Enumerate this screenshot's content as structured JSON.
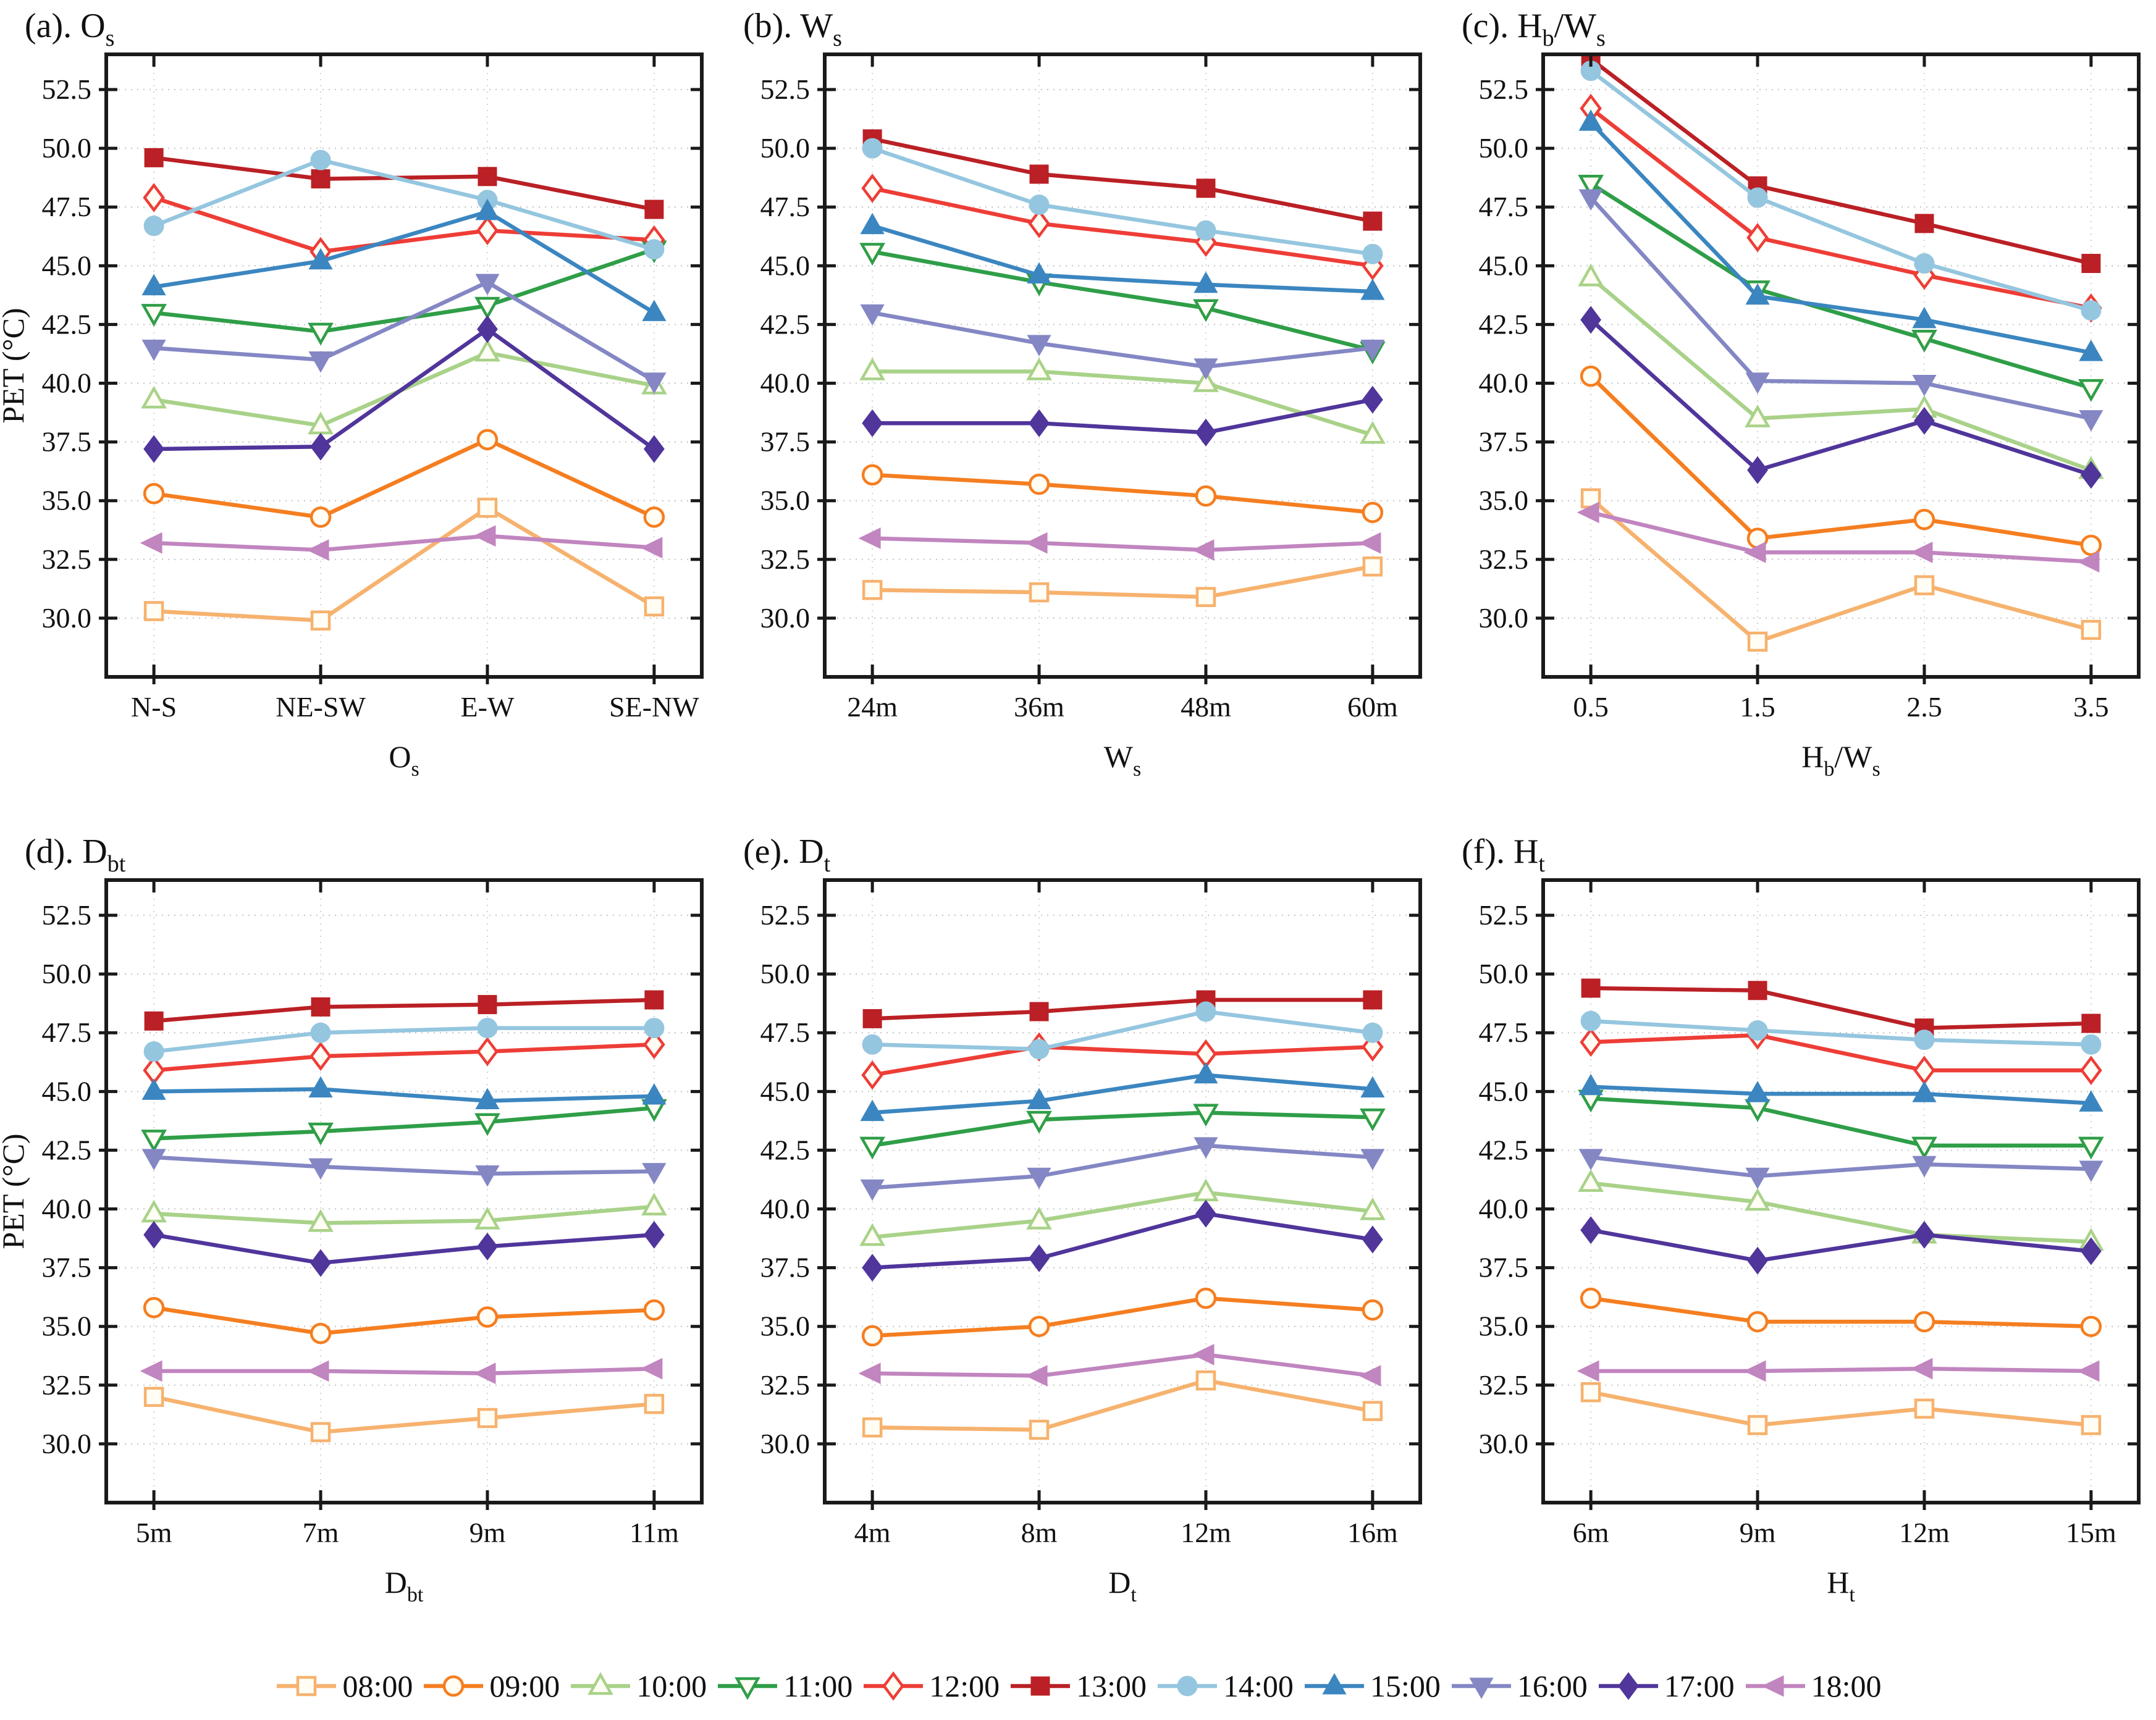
{
  "figure": {
    "ylabel": "PET (°C)",
    "ymin": 27.5,
    "ymax": 54.0,
    "yticks": [
      30.0,
      32.5,
      35.0,
      37.5,
      40.0,
      42.5,
      45.0,
      47.5,
      50.0,
      52.5
    ],
    "grid": "dotted",
    "legend_position": "bottom"
  },
  "legend": {
    "items": [
      {
        "label": "08:00",
        "color": "#F6B26E",
        "marker": "square",
        "filled": false
      },
      {
        "label": "09:00",
        "color": "#F57E20",
        "marker": "circle",
        "filled": false
      },
      {
        "label": "10:00",
        "color": "#A9D289",
        "marker": "triangle-up",
        "filled": false
      },
      {
        "label": "11:00",
        "color": "#2F9E48",
        "marker": "triangle-down",
        "filled": false
      },
      {
        "label": "12:00",
        "color": "#EE3D37",
        "marker": "diamond",
        "filled": false
      },
      {
        "label": "13:00",
        "color": "#BA2025",
        "marker": "square",
        "filled": true
      },
      {
        "label": "14:00",
        "color": "#95C6DF",
        "marker": "circle",
        "filled": true
      },
      {
        "label": "15:00",
        "color": "#3B86C0",
        "marker": "triangle-up",
        "filled": true
      },
      {
        "label": "16:00",
        "color": "#8487C4",
        "marker": "triangle-down",
        "filled": true
      },
      {
        "label": "17:00",
        "color": "#50359B",
        "marker": "diamond",
        "filled": true
      },
      {
        "label": "18:00",
        "color": "#C185BF",
        "marker": "triangle-left",
        "filled": true
      }
    ]
  },
  "chart_data": [
    {
      "type": "line",
      "panel": "a",
      "title_parts": [
        {
          "t": "(a). O"
        },
        {
          "sub": "s"
        }
      ],
      "xlabel_parts": [
        {
          "t": "O"
        },
        {
          "sub": "s"
        }
      ],
      "categories": [
        "N-S",
        "NE-SW",
        "E-W",
        "SE-NW"
      ],
      "show_ylabel": true,
      "series": [
        {
          "name": "08:00",
          "values": [
            30.3,
            29.9,
            34.7,
            30.5
          ]
        },
        {
          "name": "09:00",
          "values": [
            35.3,
            34.3,
            37.6,
            34.3
          ]
        },
        {
          "name": "10:00",
          "values": [
            39.3,
            38.2,
            41.3,
            39.9
          ]
        },
        {
          "name": "11:00",
          "values": [
            43.0,
            42.2,
            43.3,
            45.7
          ]
        },
        {
          "name": "12:00",
          "values": [
            47.9,
            45.6,
            46.5,
            46.1
          ]
        },
        {
          "name": "13:00",
          "values": [
            49.6,
            48.7,
            48.8,
            47.4
          ]
        },
        {
          "name": "14:00",
          "values": [
            46.7,
            49.5,
            47.8,
            45.7
          ]
        },
        {
          "name": "15:00",
          "values": [
            44.1,
            45.2,
            47.3,
            43.0
          ]
        },
        {
          "name": "16:00",
          "values": [
            41.5,
            41.0,
            44.3,
            40.1
          ]
        },
        {
          "name": "17:00",
          "values": [
            37.2,
            37.3,
            42.3,
            37.2
          ]
        },
        {
          "name": "18:00",
          "values": [
            33.2,
            32.9,
            33.5,
            33.0
          ]
        }
      ]
    },
    {
      "type": "line",
      "panel": "b",
      "title_parts": [
        {
          "t": "(b). W"
        },
        {
          "sub": "s"
        }
      ],
      "xlabel_parts": [
        {
          "t": "W"
        },
        {
          "sub": "s"
        }
      ],
      "categories": [
        "24m",
        "36m",
        "48m",
        "60m"
      ],
      "show_ylabel": false,
      "series": [
        {
          "name": "08:00",
          "values": [
            31.2,
            31.1,
            30.9,
            32.2
          ]
        },
        {
          "name": "09:00",
          "values": [
            36.1,
            35.7,
            35.2,
            34.5
          ]
        },
        {
          "name": "10:00",
          "values": [
            40.5,
            40.5,
            40.0,
            37.8
          ]
        },
        {
          "name": "11:00",
          "values": [
            45.6,
            44.3,
            43.2,
            41.4
          ]
        },
        {
          "name": "12:00",
          "values": [
            48.3,
            46.8,
            46.0,
            45.0
          ]
        },
        {
          "name": "13:00",
          "values": [
            50.4,
            48.9,
            48.3,
            46.9
          ]
        },
        {
          "name": "14:00",
          "values": [
            50.0,
            47.6,
            46.5,
            45.5
          ]
        },
        {
          "name": "15:00",
          "values": [
            46.7,
            44.6,
            44.2,
            43.9
          ]
        },
        {
          "name": "16:00",
          "values": [
            43.0,
            41.7,
            40.7,
            41.5
          ]
        },
        {
          "name": "17:00",
          "values": [
            38.3,
            38.3,
            37.9,
            39.3
          ]
        },
        {
          "name": "18:00",
          "values": [
            33.4,
            33.2,
            32.9,
            33.2
          ]
        }
      ]
    },
    {
      "type": "line",
      "panel": "c",
      "title_parts": [
        {
          "t": "(c). H"
        },
        {
          "sub": "b"
        },
        {
          "t": "/W"
        },
        {
          "sub": "s"
        }
      ],
      "xlabel_parts": [
        {
          "t": "H"
        },
        {
          "sub": "b"
        },
        {
          "t": "/W"
        },
        {
          "sub": "s"
        }
      ],
      "categories": [
        "0.5",
        "1.5",
        "2.5",
        "3.5"
      ],
      "show_ylabel": false,
      "series": [
        {
          "name": "08:00",
          "values": [
            35.1,
            29.0,
            31.4,
            29.5
          ]
        },
        {
          "name": "09:00",
          "values": [
            40.3,
            33.4,
            34.2,
            33.1
          ]
        },
        {
          "name": "10:00",
          "values": [
            44.5,
            38.5,
            38.9,
            36.3
          ]
        },
        {
          "name": "11:00",
          "values": [
            48.5,
            44.0,
            41.9,
            39.8
          ]
        },
        {
          "name": "12:00",
          "values": [
            51.7,
            46.2,
            44.6,
            43.2
          ]
        },
        {
          "name": "13:00",
          "values": [
            53.8,
            48.4,
            46.8,
            45.1
          ]
        },
        {
          "name": "14:00",
          "values": [
            53.3,
            47.9,
            45.1,
            43.1
          ]
        },
        {
          "name": "15:00",
          "values": [
            51.1,
            43.7,
            42.7,
            41.3
          ]
        },
        {
          "name": "16:00",
          "values": [
            47.9,
            40.1,
            40.0,
            38.5
          ]
        },
        {
          "name": "17:00",
          "values": [
            42.7,
            36.3,
            38.4,
            36.1
          ]
        },
        {
          "name": "18:00",
          "values": [
            34.5,
            32.8,
            32.8,
            32.4
          ]
        }
      ]
    },
    {
      "type": "line",
      "panel": "d",
      "title_parts": [
        {
          "t": "(d). D"
        },
        {
          "sub": "bt"
        }
      ],
      "xlabel_parts": [
        {
          "t": "D"
        },
        {
          "sub": "bt"
        }
      ],
      "categories": [
        "5m",
        "7m",
        "9m",
        "11m"
      ],
      "show_ylabel": true,
      "series": [
        {
          "name": "08:00",
          "values": [
            32.0,
            30.5,
            31.1,
            31.7
          ]
        },
        {
          "name": "09:00",
          "values": [
            35.8,
            34.7,
            35.4,
            35.7
          ]
        },
        {
          "name": "10:00",
          "values": [
            39.8,
            39.4,
            39.5,
            40.1
          ]
        },
        {
          "name": "11:00",
          "values": [
            43.0,
            43.3,
            43.7,
            44.3
          ]
        },
        {
          "name": "12:00",
          "values": [
            45.9,
            46.5,
            46.7,
            47.0
          ]
        },
        {
          "name": "13:00",
          "values": [
            48.0,
            48.6,
            48.7,
            48.9
          ]
        },
        {
          "name": "14:00",
          "values": [
            46.7,
            47.5,
            47.7,
            47.7
          ]
        },
        {
          "name": "15:00",
          "values": [
            45.0,
            45.1,
            44.6,
            44.8
          ]
        },
        {
          "name": "16:00",
          "values": [
            42.2,
            41.8,
            41.5,
            41.6
          ]
        },
        {
          "name": "17:00",
          "values": [
            38.9,
            37.7,
            38.4,
            38.9
          ]
        },
        {
          "name": "18:00",
          "values": [
            33.1,
            33.1,
            33.0,
            33.2
          ]
        }
      ]
    },
    {
      "type": "line",
      "panel": "e",
      "title_parts": [
        {
          "t": "(e). D"
        },
        {
          "sub": "t"
        }
      ],
      "xlabel_parts": [
        {
          "t": "D"
        },
        {
          "sub": "t"
        }
      ],
      "categories": [
        "4m",
        "8m",
        "12m",
        "16m"
      ],
      "show_ylabel": false,
      "series": [
        {
          "name": "08:00",
          "values": [
            30.7,
            30.6,
            32.7,
            31.4
          ]
        },
        {
          "name": "09:00",
          "values": [
            34.6,
            35.0,
            36.2,
            35.7
          ]
        },
        {
          "name": "10:00",
          "values": [
            38.8,
            39.5,
            40.7,
            39.9
          ]
        },
        {
          "name": "11:00",
          "values": [
            42.7,
            43.8,
            44.1,
            43.9
          ]
        },
        {
          "name": "12:00",
          "values": [
            45.7,
            46.9,
            46.6,
            46.9
          ]
        },
        {
          "name": "13:00",
          "values": [
            48.1,
            48.4,
            48.9,
            48.9
          ]
        },
        {
          "name": "14:00",
          "values": [
            47.0,
            46.8,
            48.4,
            47.5
          ]
        },
        {
          "name": "15:00",
          "values": [
            44.1,
            44.6,
            45.7,
            45.1
          ]
        },
        {
          "name": "16:00",
          "values": [
            40.9,
            41.4,
            42.7,
            42.2
          ]
        },
        {
          "name": "17:00",
          "values": [
            37.5,
            37.9,
            39.8,
            38.7
          ]
        },
        {
          "name": "18:00",
          "values": [
            33.0,
            32.9,
            33.8,
            32.9
          ]
        }
      ]
    },
    {
      "type": "line",
      "panel": "f",
      "title_parts": [
        {
          "t": "(f). H"
        },
        {
          "sub": "t"
        }
      ],
      "xlabel_parts": [
        {
          "t": "H"
        },
        {
          "sub": "t"
        }
      ],
      "categories": [
        "6m",
        "9m",
        "12m",
        "15m"
      ],
      "show_ylabel": false,
      "series": [
        {
          "name": "08:00",
          "values": [
            32.2,
            30.8,
            31.5,
            30.8
          ]
        },
        {
          "name": "09:00",
          "values": [
            36.2,
            35.2,
            35.2,
            35.0
          ]
        },
        {
          "name": "10:00",
          "values": [
            41.1,
            40.3,
            38.9,
            38.6
          ]
        },
        {
          "name": "11:00",
          "values": [
            44.7,
            44.3,
            42.7,
            42.7
          ]
        },
        {
          "name": "12:00",
          "values": [
            47.1,
            47.4,
            45.9,
            45.9
          ]
        },
        {
          "name": "13:00",
          "values": [
            49.4,
            49.3,
            47.7,
            47.9
          ]
        },
        {
          "name": "14:00",
          "values": [
            48.0,
            47.6,
            47.2,
            47.0
          ]
        },
        {
          "name": "15:00",
          "values": [
            45.2,
            44.9,
            44.9,
            44.5
          ]
        },
        {
          "name": "16:00",
          "values": [
            42.2,
            41.4,
            41.9,
            41.7
          ]
        },
        {
          "name": "17:00",
          "values": [
            39.1,
            37.8,
            38.9,
            38.2
          ]
        },
        {
          "name": "18:00",
          "values": [
            33.1,
            33.1,
            33.2,
            33.1
          ]
        }
      ]
    }
  ]
}
